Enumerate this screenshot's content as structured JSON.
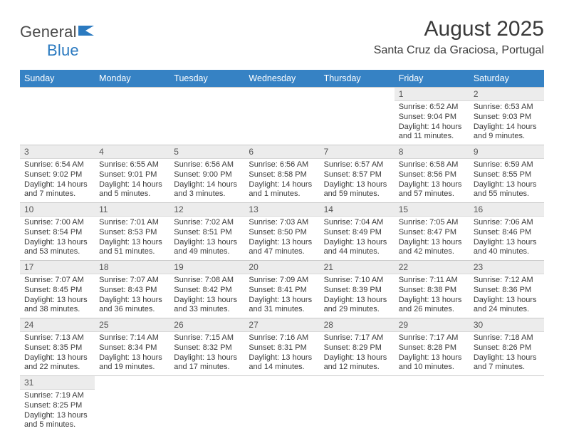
{
  "brand": {
    "part1": "General",
    "part2": "Blue"
  },
  "title": "August 2025",
  "location": "Santa Cruz da Graciosa, Portugal",
  "colors": {
    "header_bg": "#3682c4",
    "header_fg": "#ffffff",
    "daynum_bg": "#ececec",
    "border": "#c9c9c9",
    "text": "#3b3b3b",
    "brand_blue": "#2b7ac0"
  },
  "weekdays": [
    "Sunday",
    "Monday",
    "Tuesday",
    "Wednesday",
    "Thursday",
    "Friday",
    "Saturday"
  ],
  "weeks": [
    [
      null,
      null,
      null,
      null,
      null,
      {
        "n": "1",
        "sunrise": "6:52 AM",
        "sunset": "9:04 PM",
        "dl_h": "14",
        "dl_m": "11"
      },
      {
        "n": "2",
        "sunrise": "6:53 AM",
        "sunset": "9:03 PM",
        "dl_h": "14",
        "dl_m": "9"
      }
    ],
    [
      {
        "n": "3",
        "sunrise": "6:54 AM",
        "sunset": "9:02 PM",
        "dl_h": "14",
        "dl_m": "7"
      },
      {
        "n": "4",
        "sunrise": "6:55 AM",
        "sunset": "9:01 PM",
        "dl_h": "14",
        "dl_m": "5"
      },
      {
        "n": "5",
        "sunrise": "6:56 AM",
        "sunset": "9:00 PM",
        "dl_h": "14",
        "dl_m": "3"
      },
      {
        "n": "6",
        "sunrise": "6:56 AM",
        "sunset": "8:58 PM",
        "dl_h": "14",
        "dl_m": "1"
      },
      {
        "n": "7",
        "sunrise": "6:57 AM",
        "sunset": "8:57 PM",
        "dl_h": "13",
        "dl_m": "59"
      },
      {
        "n": "8",
        "sunrise": "6:58 AM",
        "sunset": "8:56 PM",
        "dl_h": "13",
        "dl_m": "57"
      },
      {
        "n": "9",
        "sunrise": "6:59 AM",
        "sunset": "8:55 PM",
        "dl_h": "13",
        "dl_m": "55"
      }
    ],
    [
      {
        "n": "10",
        "sunrise": "7:00 AM",
        "sunset": "8:54 PM",
        "dl_h": "13",
        "dl_m": "53"
      },
      {
        "n": "11",
        "sunrise": "7:01 AM",
        "sunset": "8:53 PM",
        "dl_h": "13",
        "dl_m": "51"
      },
      {
        "n": "12",
        "sunrise": "7:02 AM",
        "sunset": "8:51 PM",
        "dl_h": "13",
        "dl_m": "49"
      },
      {
        "n": "13",
        "sunrise": "7:03 AM",
        "sunset": "8:50 PM",
        "dl_h": "13",
        "dl_m": "47"
      },
      {
        "n": "14",
        "sunrise": "7:04 AM",
        "sunset": "8:49 PM",
        "dl_h": "13",
        "dl_m": "44"
      },
      {
        "n": "15",
        "sunrise": "7:05 AM",
        "sunset": "8:47 PM",
        "dl_h": "13",
        "dl_m": "42"
      },
      {
        "n": "16",
        "sunrise": "7:06 AM",
        "sunset": "8:46 PM",
        "dl_h": "13",
        "dl_m": "40"
      }
    ],
    [
      {
        "n": "17",
        "sunrise": "7:07 AM",
        "sunset": "8:45 PM",
        "dl_h": "13",
        "dl_m": "38"
      },
      {
        "n": "18",
        "sunrise": "7:07 AM",
        "sunset": "8:43 PM",
        "dl_h": "13",
        "dl_m": "36"
      },
      {
        "n": "19",
        "sunrise": "7:08 AM",
        "sunset": "8:42 PM",
        "dl_h": "13",
        "dl_m": "33"
      },
      {
        "n": "20",
        "sunrise": "7:09 AM",
        "sunset": "8:41 PM",
        "dl_h": "13",
        "dl_m": "31"
      },
      {
        "n": "21",
        "sunrise": "7:10 AM",
        "sunset": "8:39 PM",
        "dl_h": "13",
        "dl_m": "29"
      },
      {
        "n": "22",
        "sunrise": "7:11 AM",
        "sunset": "8:38 PM",
        "dl_h": "13",
        "dl_m": "26"
      },
      {
        "n": "23",
        "sunrise": "7:12 AM",
        "sunset": "8:36 PM",
        "dl_h": "13",
        "dl_m": "24"
      }
    ],
    [
      {
        "n": "24",
        "sunrise": "7:13 AM",
        "sunset": "8:35 PM",
        "dl_h": "13",
        "dl_m": "22"
      },
      {
        "n": "25",
        "sunrise": "7:14 AM",
        "sunset": "8:34 PM",
        "dl_h": "13",
        "dl_m": "19"
      },
      {
        "n": "26",
        "sunrise": "7:15 AM",
        "sunset": "8:32 PM",
        "dl_h": "13",
        "dl_m": "17"
      },
      {
        "n": "27",
        "sunrise": "7:16 AM",
        "sunset": "8:31 PM",
        "dl_h": "13",
        "dl_m": "14"
      },
      {
        "n": "28",
        "sunrise": "7:17 AM",
        "sunset": "8:29 PM",
        "dl_h": "13",
        "dl_m": "12"
      },
      {
        "n": "29",
        "sunrise": "7:17 AM",
        "sunset": "8:28 PM",
        "dl_h": "13",
        "dl_m": "10"
      },
      {
        "n": "30",
        "sunrise": "7:18 AM",
        "sunset": "8:26 PM",
        "dl_h": "13",
        "dl_m": "7"
      }
    ],
    [
      {
        "n": "31",
        "sunrise": "7:19 AM",
        "sunset": "8:25 PM",
        "dl_h": "13",
        "dl_m": "5"
      },
      null,
      null,
      null,
      null,
      null,
      null
    ]
  ],
  "labels": {
    "sunrise_prefix": "Sunrise: ",
    "sunset_prefix": "Sunset: ",
    "daylight_prefix": "Daylight: ",
    "hours_word": " hours and ",
    "minutes_word": " minutes."
  }
}
